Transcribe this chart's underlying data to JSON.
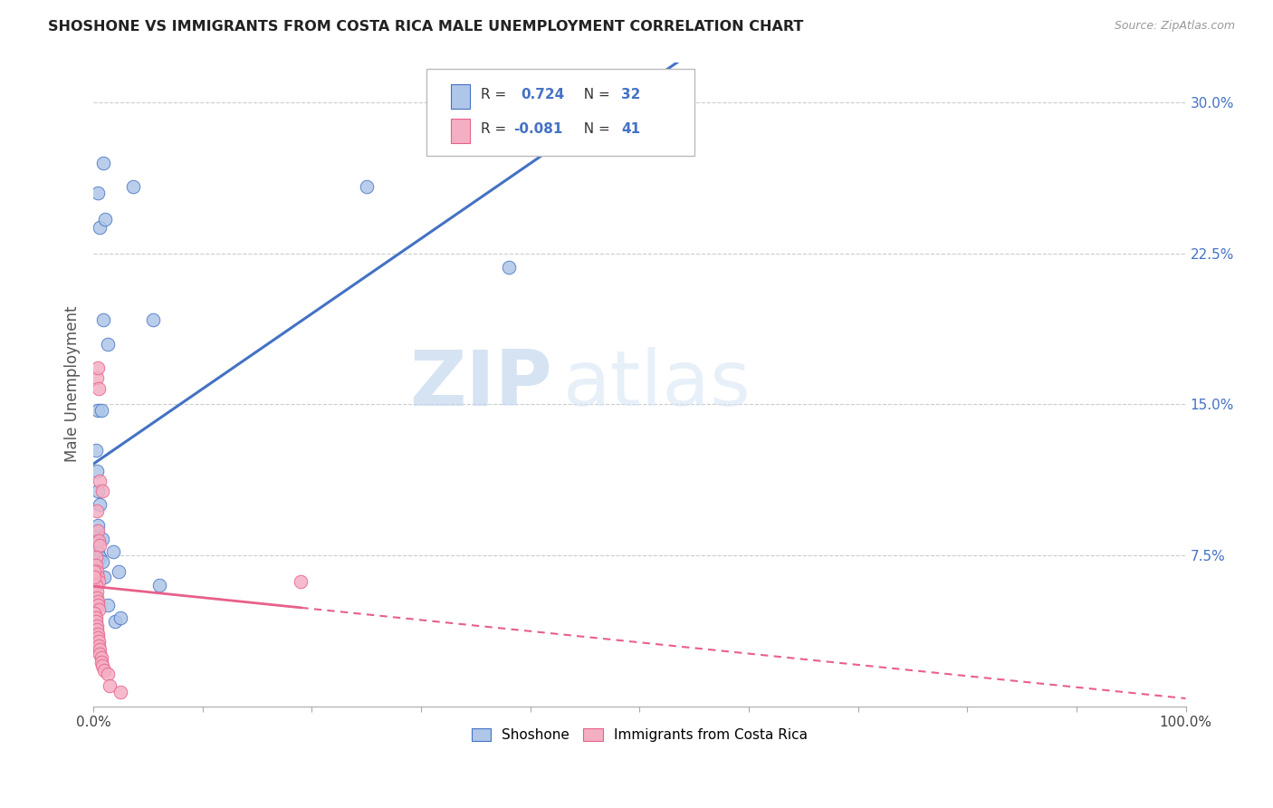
{
  "title": "SHOSHONE VS IMMIGRANTS FROM COSTA RICA MALE UNEMPLOYMENT CORRELATION CHART",
  "source": "Source: ZipAtlas.com",
  "ylabel": "Male Unemployment",
  "legend1_R": "0.724",
  "legend1_N": "32",
  "legend2_R": "-0.081",
  "legend2_N": "41",
  "shoshone_color": "#aec6e8",
  "immigrants_color": "#f4afc3",
  "trendline1_color": "#4472C4",
  "trendline2_color": "#E8608A",
  "shoshone_x": [
    0.004,
    0.006,
    0.009,
    0.011,
    0.004,
    0.007,
    0.009,
    0.013,
    0.002,
    0.003,
    0.004,
    0.006,
    0.003,
    0.004,
    0.008,
    0.004,
    0.018,
    0.023,
    0.036,
    0.055,
    0.25,
    0.38,
    0.44,
    0.003,
    0.004,
    0.006,
    0.008,
    0.01,
    0.013,
    0.02,
    0.025,
    0.06
  ],
  "shoshone_y": [
    0.255,
    0.238,
    0.27,
    0.242,
    0.147,
    0.147,
    0.192,
    0.18,
    0.127,
    0.117,
    0.107,
    0.1,
    0.087,
    0.09,
    0.083,
    0.073,
    0.077,
    0.067,
    0.258,
    0.192,
    0.258,
    0.218,
    0.302,
    0.082,
    0.077,
    0.074,
    0.072,
    0.064,
    0.05,
    0.042,
    0.044,
    0.06
  ],
  "immigrants_x": [
    0.003,
    0.004,
    0.005,
    0.006,
    0.008,
    0.003,
    0.004,
    0.005,
    0.006,
    0.002,
    0.002,
    0.003,
    0.004,
    0.005,
    0.002,
    0.003,
    0.003,
    0.004,
    0.004,
    0.005,
    0.001,
    0.002,
    0.002,
    0.003,
    0.003,
    0.004,
    0.004,
    0.005,
    0.005,
    0.006,
    0.006,
    0.007,
    0.007,
    0.008,
    0.01,
    0.013,
    0.015,
    0.025,
    0.001,
    0.001,
    0.19
  ],
  "immigrants_y": [
    0.163,
    0.168,
    0.158,
    0.112,
    0.107,
    0.097,
    0.087,
    0.082,
    0.08,
    0.074,
    0.07,
    0.067,
    0.064,
    0.062,
    0.06,
    0.057,
    0.054,
    0.052,
    0.05,
    0.048,
    0.046,
    0.044,
    0.042,
    0.04,
    0.038,
    0.036,
    0.034,
    0.032,
    0.03,
    0.028,
    0.026,
    0.024,
    0.022,
    0.02,
    0.018,
    0.016,
    0.01,
    0.007,
    0.067,
    0.064,
    0.062
  ],
  "xlim": [
    0.0,
    1.0
  ],
  "ylim": [
    0.0,
    0.32
  ],
  "yticks": [
    0.075,
    0.15,
    0.225,
    0.3
  ],
  "ytick_labels": [
    "7.5%",
    "15.0%",
    "22.5%",
    "30.0%"
  ],
  "xtick_positions": [
    0.0,
    0.1,
    0.2,
    0.3,
    0.4,
    0.5,
    0.6,
    0.7,
    0.8,
    0.9,
    1.0
  ],
  "xtick_labels_show": [
    "0.0%",
    "",
    "",
    "",
    "",
    "",
    "",
    "",
    "",
    "",
    "100.0%"
  ]
}
